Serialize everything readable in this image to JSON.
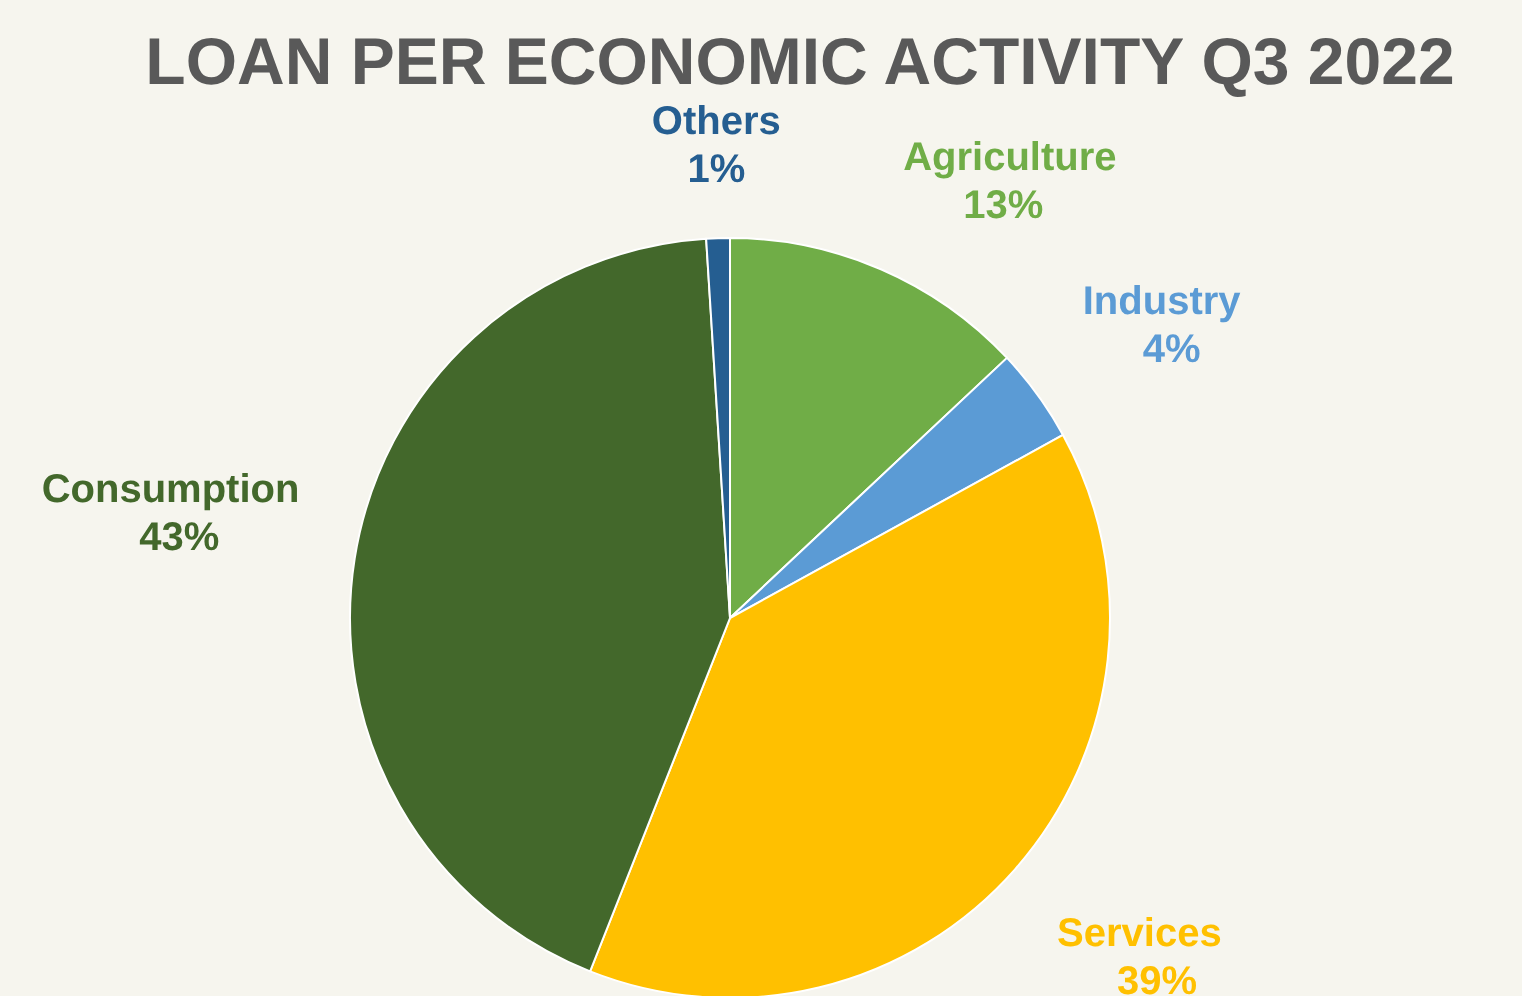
{
  "chart_data": {
    "type": "pie",
    "title": "LOAN PER ECONOMIC ACTIVITY Q3 2022",
    "categories": [
      "Agriculture",
      "Industry",
      "Services",
      "Consumption",
      "Others"
    ],
    "values": [
      13,
      4,
      39,
      43,
      1
    ],
    "colors": [
      "#70ad47",
      "#5b9bd5",
      "#ffc000",
      "#43682b",
      "#255e91"
    ],
    "value_labels": [
      "13%",
      "4%",
      "39%",
      "43%",
      "1%"
    ],
    "legend": false
  }
}
